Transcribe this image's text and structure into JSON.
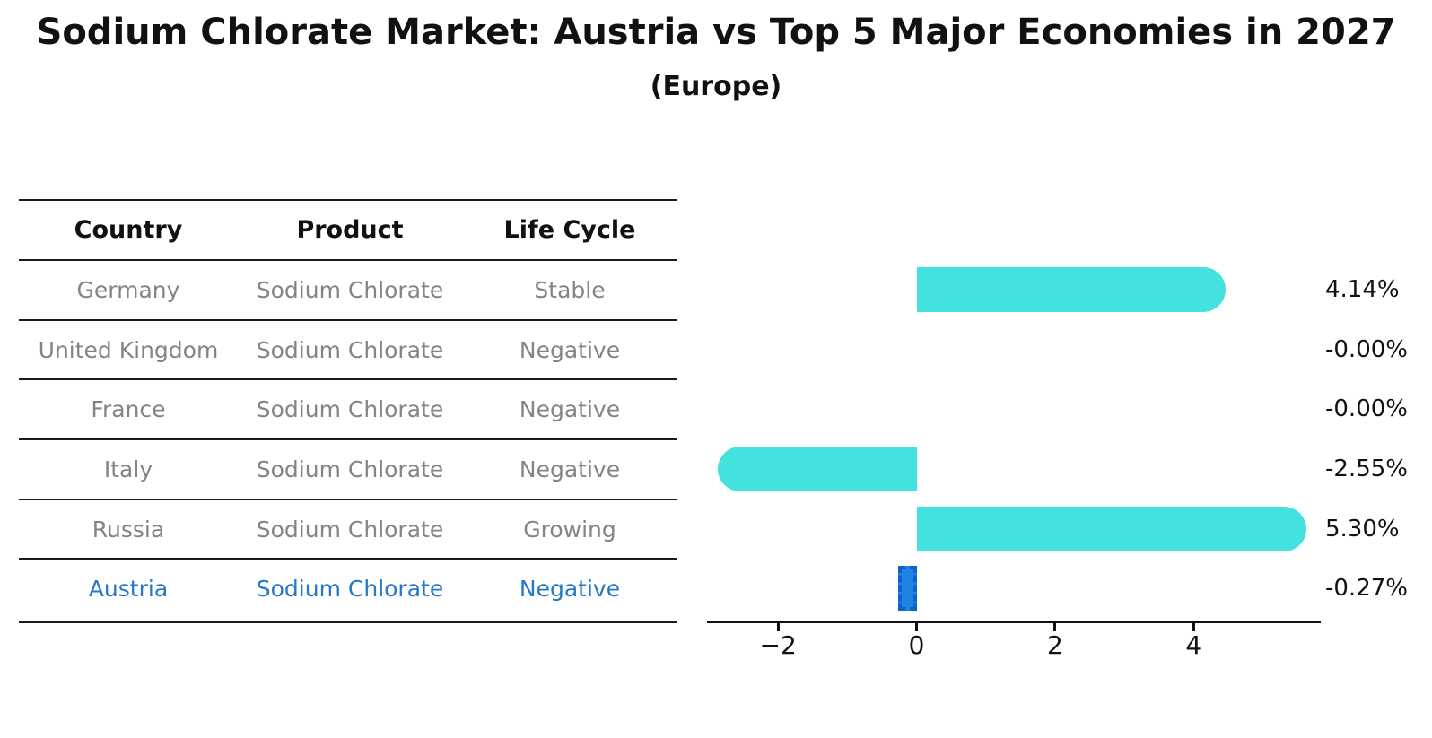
{
  "title": "Sodium Chlorate Market: Austria vs Top 5 Major Economies in 2027",
  "subtitle": "(Europe)",
  "table": {
    "headers": [
      "Country",
      "Product",
      "Life Cycle"
    ],
    "rows": [
      {
        "country": "Germany",
        "product": "Sodium Chlorate",
        "life_cycle": "Stable"
      },
      {
        "country": "United Kingdom",
        "product": "Sodium Chlorate",
        "life_cycle": "Negative"
      },
      {
        "country": "France",
        "product": "Sodium Chlorate",
        "life_cycle": "Negative"
      },
      {
        "country": "Italy",
        "product": "Sodium Chlorate",
        "life_cycle": "Negative"
      },
      {
        "country": "Russia",
        "product": "Sodium Chlorate",
        "life_cycle": "Growing"
      },
      {
        "country": "Austria",
        "product": "Sodium Chlorate",
        "life_cycle": "Negative"
      }
    ]
  },
  "chart_data": {
    "type": "bar",
    "orientation": "horizontal",
    "title": "Sodium Chlorate Market: Austria vs Top 5 Major Economies in 2027",
    "subtitle": "(Europe)",
    "categories": [
      "Germany",
      "United Kingdom",
      "France",
      "Italy",
      "Russia",
      "Austria"
    ],
    "values": [
      4.14,
      -0.0,
      -0.0,
      -2.55,
      5.3,
      -0.27
    ],
    "value_labels": [
      "4.14%",
      "-0.00%",
      "-0.00%",
      "-2.55%",
      "5.30%",
      "-0.27%"
    ],
    "highlight_category": "Austria",
    "xlabel": "",
    "ylabel": "",
    "xlim": [
      -3.0,
      5.81
    ],
    "xticks": [
      -2,
      0,
      2,
      4
    ],
    "xtick_labels": [
      "−2",
      "0",
      "2",
      "4"
    ],
    "grid": false,
    "legend": false
  },
  "colors": {
    "bar_cyan": "#44E2DE",
    "bar_highlight_fill": "#1E82E6",
    "bar_highlight_border": "#0F62C8",
    "highlight_text": "#2478C8",
    "table_text": "#848484",
    "header_text": "#111111",
    "axis": "#111111"
  }
}
